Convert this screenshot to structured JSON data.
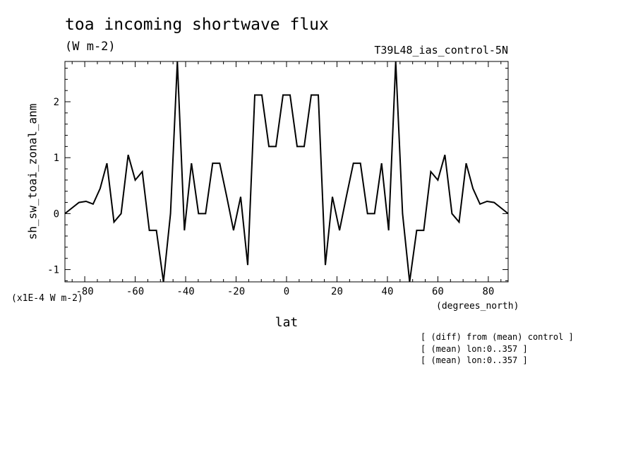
{
  "chart_data": {
    "type": "line",
    "title": "toa incoming shortwave flux",
    "units": "(W m-2)",
    "run_label": "T39L48_ias_control-5N",
    "xlabel": "lat",
    "xunits": "(degrees_north)",
    "ylabel": "sh_sw_toai_zonal_anm",
    "y_scale_note": "(x1E-4 W m-2)",
    "xlim": [
      -87.86,
      87.86
    ],
    "ylim": [
      -1.22,
      2.72
    ],
    "x_ticks": [
      -80,
      -60,
      -40,
      -20,
      0,
      20,
      40,
      60,
      80
    ],
    "x_tick_labels": [
      "-80",
      "-60",
      "-40",
      "-20",
      "0",
      "20",
      "40",
      "60",
      "80"
    ],
    "y_ticks": [
      -1,
      0,
      1,
      2
    ],
    "y_tick_labels": [
      "-1",
      "0",
      "1",
      "2"
    ],
    "grid": false,
    "series": [
      {
        "x": [
          -87.86,
          -85.1,
          -82.3,
          -79.5,
          -76.7,
          -73.9,
          -71.2,
          -68.4,
          -65.6,
          -62.8,
          -60.0,
          -57.2,
          -54.4,
          -51.6,
          -48.8,
          -46.0,
          -43.3,
          -40.5,
          -37.7,
          -34.9,
          -32.1,
          -29.3,
          -26.5,
          -23.7,
          -21.0,
          -18.2,
          -15.4,
          -12.6,
          -9.8,
          -7.0,
          -4.2,
          -1.4,
          1.4,
          4.2,
          7.0,
          9.8,
          12.6,
          15.4,
          18.2,
          21.0,
          23.7,
          26.5,
          29.3,
          32.1,
          34.9,
          37.7,
          40.5,
          43.3,
          46.0,
          48.8,
          51.6,
          54.4,
          57.2,
          60.0,
          62.8,
          65.6,
          68.4,
          71.2,
          73.9,
          76.7,
          79.5,
          82.3,
          85.1,
          87.86
        ],
        "y": [
          0.0,
          0.1,
          0.2,
          0.22,
          0.17,
          0.45,
          0.9,
          -0.15,
          0.0,
          1.05,
          0.6,
          0.75,
          -0.3,
          -0.3,
          -1.22,
          0.0,
          2.72,
          -0.3,
          0.9,
          0.0,
          0.0,
          0.9,
          0.9,
          0.3,
          -0.3,
          0.3,
          -0.92,
          2.12,
          2.12,
          1.2,
          1.2,
          2.12,
          2.12,
          1.2,
          1.2,
          2.12,
          2.12,
          -0.92,
          0.3,
          -0.3,
          0.3,
          0.9,
          0.9,
          0.0,
          0.0,
          0.9,
          -0.3,
          2.72,
          0.0,
          -1.22,
          -0.3,
          -0.3,
          0.75,
          0.6,
          1.05,
          0.0,
          -0.15,
          0.9,
          0.45,
          0.17,
          0.22,
          0.2,
          0.1,
          0.0
        ]
      }
    ]
  },
  "notes": [
    "[ (diff) from (mean) control ]",
    "[ (mean) lon:0..357 ]",
    "[ (mean) lon:0..357 ]"
  ]
}
